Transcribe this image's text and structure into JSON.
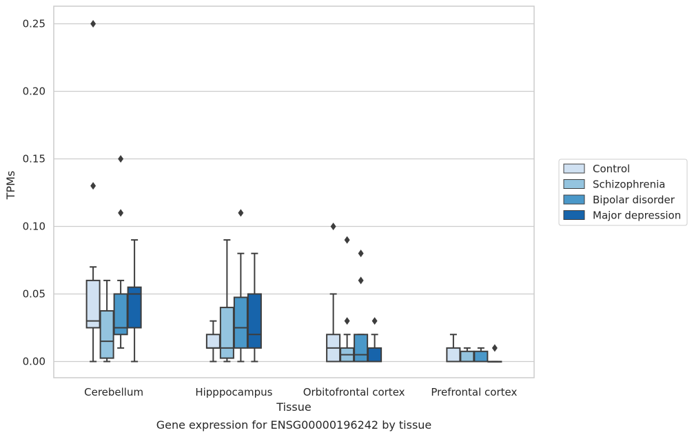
{
  "chart_data": {
    "type": "box",
    "title": "",
    "caption": "Gene expression for ENSG00000196242 by tissue",
    "xlabel": "Tissue",
    "ylabel": "TPMs",
    "ylim": [
      -0.012,
      0.263
    ],
    "yticks": [
      0.0,
      0.05,
      0.1,
      0.15,
      0.2,
      0.25
    ],
    "ytick_labels": [
      "0.00",
      "0.05",
      "0.10",
      "0.15",
      "0.20",
      "0.25"
    ],
    "grid": true,
    "legend_position": "right",
    "categories": [
      "Cerebellum",
      "Hipppocampus",
      "Orbitofrontal cortex",
      "Prefrontal cortex"
    ],
    "series": [
      {
        "name": "Control",
        "color": "#d0e1f2",
        "boxes": [
          {
            "whislo": 0.0,
            "q1": 0.025,
            "med": 0.03,
            "q3": 0.06,
            "whishi": 0.07,
            "fliers": [
              0.13,
              0.25
            ]
          },
          {
            "whislo": 0.0,
            "q1": 0.01,
            "med": 0.01,
            "q3": 0.02,
            "whishi": 0.03,
            "fliers": []
          },
          {
            "whislo": 0.0,
            "q1": 0.0,
            "med": 0.01,
            "q3": 0.02,
            "whishi": 0.05,
            "fliers": [
              0.1
            ]
          },
          {
            "whislo": 0.0,
            "q1": 0.0,
            "med": 0.0,
            "q3": 0.01,
            "whishi": 0.02,
            "fliers": []
          }
        ]
      },
      {
        "name": "Schizophrenia",
        "color": "#94c4df",
        "boxes": [
          {
            "whislo": 0.0,
            "q1": 0.0025,
            "med": 0.015,
            "q3": 0.0375,
            "whishi": 0.06,
            "fliers": []
          },
          {
            "whislo": 0.0,
            "q1": 0.0025,
            "med": 0.01,
            "q3": 0.04,
            "whishi": 0.09,
            "fliers": []
          },
          {
            "whislo": 0.0,
            "q1": 0.0,
            "med": 0.005,
            "q3": 0.01,
            "whishi": 0.02,
            "fliers": [
              0.03,
              0.09
            ]
          },
          {
            "whislo": 0.0,
            "q1": 0.0,
            "med": 0.0,
            "q3": 0.0075,
            "whishi": 0.01,
            "fliers": []
          }
        ]
      },
      {
        "name": "Bipolar disorder",
        "color": "#4a98c9",
        "boxes": [
          {
            "whislo": 0.01,
            "q1": 0.02,
            "med": 0.025,
            "q3": 0.05,
            "whishi": 0.06,
            "fliers": [
              0.11,
              0.15
            ]
          },
          {
            "whislo": 0.0,
            "q1": 0.01,
            "med": 0.025,
            "q3": 0.0475,
            "whishi": 0.08,
            "fliers": [
              0.11
            ]
          },
          {
            "whislo": 0.0,
            "q1": 0.0,
            "med": 0.005,
            "q3": 0.02,
            "whishi": 0.02,
            "fliers": [
              0.06,
              0.08
            ]
          },
          {
            "whislo": 0.0,
            "q1": 0.0,
            "med": 0.0,
            "q3": 0.0075,
            "whishi": 0.01,
            "fliers": []
          }
        ]
      },
      {
        "name": "Major depression",
        "color": "#1764ab",
        "boxes": [
          {
            "whislo": 0.0,
            "q1": 0.025,
            "med": 0.05,
            "q3": 0.055,
            "whishi": 0.09,
            "fliers": []
          },
          {
            "whislo": 0.0,
            "q1": 0.01,
            "med": 0.02,
            "q3": 0.05,
            "whishi": 0.08,
            "fliers": []
          },
          {
            "whislo": 0.0,
            "q1": 0.0,
            "med": 0.0,
            "q3": 0.01,
            "whishi": 0.02,
            "fliers": [
              0.03
            ]
          },
          {
            "whislo": 0.0,
            "q1": 0.0,
            "med": 0.0,
            "q3": 0.0,
            "whishi": 0.0,
            "fliers": [
              0.01
            ]
          }
        ]
      }
    ]
  }
}
